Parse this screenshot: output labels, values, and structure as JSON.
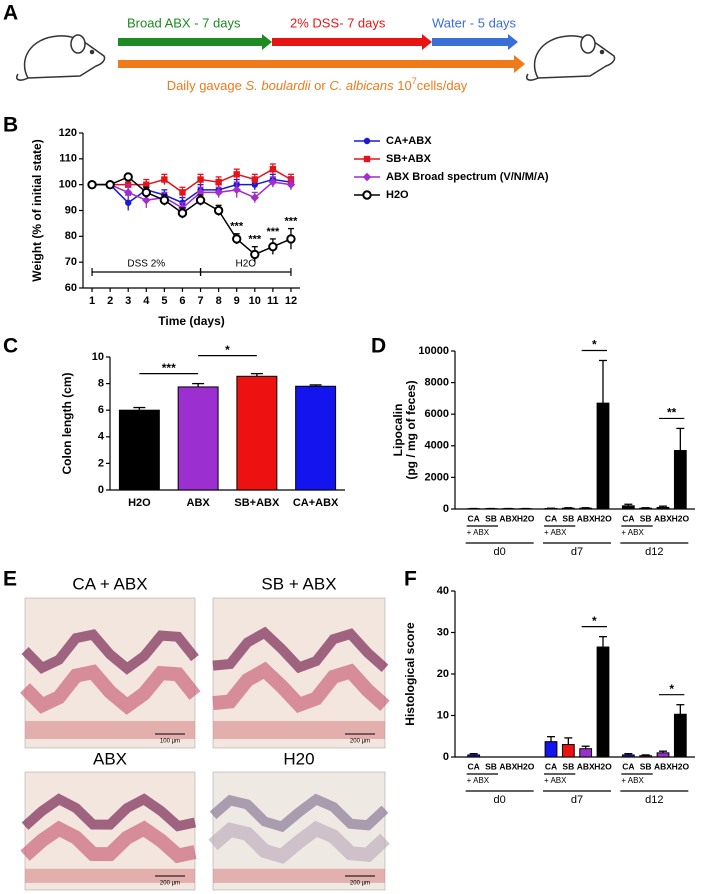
{
  "panel_labels": [
    "A",
    "B",
    "C",
    "D",
    "E",
    "F"
  ],
  "schematic": {
    "phases": [
      "Broad ABX - 7 days",
      "2% DSS- 7 days",
      "Water - 5 days"
    ],
    "gavage": [
      {
        "text": "Daily gavage "
      },
      {
        "text": "S. boulardii",
        "italic": true
      },
      {
        "text": " or "
      },
      {
        "text": "C. albicans",
        "italic": true
      },
      {
        "text": " 10"
      },
      {
        "text": "7",
        "sup": true
      },
      {
        "text": "cells/day"
      }
    ]
  },
  "histology": {
    "panels": [
      {
        "title": "CA + ABX",
        "scale": "100 µm"
      },
      {
        "title": "SB + ABX",
        "scale": "200 µm"
      },
      {
        "title": "ABX",
        "scale": "200 µm"
      },
      {
        "title": "H20",
        "scale": "200 µm"
      }
    ]
  },
  "chart_data": [
    {
      "type": "line",
      "x_label": "Time (days)",
      "y_label": "Weight (% of initial state)",
      "x": [
        1,
        2,
        3,
        4,
        5,
        6,
        7,
        8,
        9,
        10,
        11,
        12
      ],
      "xlim": [
        0.5,
        12.5
      ],
      "xticks": [
        1,
        2,
        3,
        4,
        5,
        6,
        7,
        8,
        9,
        10,
        11,
        12
      ],
      "ylim": [
        60,
        120
      ],
      "yticks": [
        60,
        70,
        80,
        90,
        100,
        110,
        120
      ],
      "series": [
        {
          "name": "CA+ABX",
          "color": "#1a1ad6",
          "marker": "circle",
          "values": [
            100,
            100,
            93,
            98,
            96,
            93,
            98,
            98,
            100,
            100,
            102,
            101
          ],
          "errors": [
            0,
            0,
            3,
            2,
            2,
            2,
            2,
            2,
            2,
            2,
            2,
            2
          ]
        },
        {
          "name": "SB+ABX",
          "color": "#e5141b",
          "marker": "square",
          "values": [
            100,
            100,
            100,
            100,
            102,
            97,
            102,
            101,
            104,
            102,
            106,
            102
          ],
          "errors": [
            0,
            0,
            2,
            2,
            2,
            2,
            2,
            2,
            2,
            2,
            2,
            2
          ]
        },
        {
          "name": "ABX Broad spectrum (V/N/M/A)",
          "color": "#a22ccc",
          "marker": "diamond",
          "values": [
            100,
            100,
            97,
            94,
            95,
            91,
            97,
            97,
            98,
            95,
            101,
            100
          ],
          "errors": [
            0,
            0,
            3,
            3,
            2,
            2,
            2,
            2,
            3,
            2,
            2,
            2
          ]
        },
        {
          "name": "H2O",
          "color": "#000000",
          "marker": "open-circle",
          "values": [
            100,
            100,
            103,
            97,
            94,
            89,
            94,
            90,
            79,
            73,
            76,
            79
          ],
          "errors": [
            0,
            0,
            1,
            2,
            2,
            2,
            2,
            2,
            2,
            3,
            3,
            4
          ]
        }
      ],
      "annotations": [
        {
          "text": "***",
          "x": 9,
          "series": 3
        },
        {
          "text": "***",
          "x": 10,
          "series": 3
        },
        {
          "text": "***",
          "x": 11,
          "series": 3
        },
        {
          "text": "***",
          "x": 12,
          "series": 3
        }
      ],
      "periods": [
        {
          "label": "DSS 2%",
          "start": 1,
          "end": 7
        },
        {
          "label": "H2O",
          "start": 7,
          "end": 12
        }
      ]
    },
    {
      "type": "bar",
      "y_label": "Colon length (cm)",
      "categories": [
        "H2O",
        "ABX",
        "SB+ABX",
        "CA+ABX"
      ],
      "values": [
        6.0,
        7.75,
        8.55,
        7.8
      ],
      "errors": [
        0.2,
        0.25,
        0.2,
        0.1
      ],
      "colors": [
        "#000000",
        "#9b2fd0",
        "#ee1111",
        "#1414ee"
      ],
      "ylim": [
        0,
        10
      ],
      "yticks": [
        0,
        2,
        4,
        6,
        8,
        10
      ],
      "significance": [
        {
          "text": "***",
          "categories": [
            0,
            1
          ]
        },
        {
          "text": "*",
          "categories": [
            1,
            2
          ]
        }
      ]
    },
    {
      "type": "grouped_bar",
      "y_label": [
        "Lipocalin",
        "(pg / mg of feces)"
      ],
      "ylim": [
        0,
        10000
      ],
      "yticks": [
        0,
        2000,
        4000,
        6000,
        8000,
        10000
      ],
      "colors": [
        "#000000",
        "#000000",
        "#000000",
        "#000000"
      ],
      "groups": [
        {
          "name": "d0",
          "sublabel": "+ ABX",
          "categories": [
            "CA",
            "SB",
            "ABX",
            "H2O"
          ],
          "values": [
            20,
            20,
            20,
            20
          ],
          "errors": [
            10,
            10,
            10,
            10
          ],
          "significance": []
        },
        {
          "name": "d7",
          "sublabel": "+ ABX",
          "categories": [
            "CA",
            "SB",
            "ABX",
            "H2O"
          ],
          "values": [
            30,
            50,
            50,
            6700
          ],
          "errors": [
            20,
            30,
            30,
            2700
          ],
          "significance": [
            {
              "text": "*",
              "categories": [
                2,
                3
              ]
            }
          ]
        },
        {
          "name": "d12",
          "sublabel": "+ ABX",
          "categories": [
            "CA",
            "SB",
            "ABX",
            "H2O"
          ],
          "values": [
            200,
            50,
            100,
            3700
          ],
          "errors": [
            100,
            30,
            80,
            1400
          ],
          "significance": [
            {
              "text": "**",
              "categories": [
                2,
                3
              ]
            }
          ]
        }
      ]
    },
    {
      "type": "grouped_bar",
      "y_label": [
        "Histological score"
      ],
      "ylim": [
        0,
        40
      ],
      "yticks": [
        0,
        10,
        20,
        30,
        40
      ],
      "colors": [
        "#1414ee",
        "#ee1111",
        "#9b2fd0",
        "#000000"
      ],
      "groups": [
        {
          "name": "d0",
          "sublabel": "+ ABX",
          "categories": [
            "CA",
            "SB",
            "ABX",
            "H2O"
          ],
          "values": [
            0.5,
            0,
            0,
            0
          ],
          "errors": [
            0.3,
            0,
            0,
            0
          ],
          "significance": []
        },
        {
          "name": "d7",
          "sublabel": "+ ABX",
          "categories": [
            "CA",
            "SB",
            "ABX",
            "H2O"
          ],
          "values": [
            3.7,
            3.0,
            2.0,
            26.5
          ],
          "errors": [
            1.2,
            1.6,
            0.6,
            2.5
          ],
          "significance": [
            {
              "text": "*",
              "categories": [
                2,
                3
              ]
            }
          ]
        },
        {
          "name": "d12",
          "sublabel": "+ ABX",
          "categories": [
            "CA",
            "SB",
            "ABX",
            "H2O"
          ],
          "values": [
            0.5,
            0.3,
            1.0,
            10.3
          ],
          "errors": [
            0.3,
            0.2,
            0.4,
            2.3
          ],
          "significance": [
            {
              "text": "*",
              "categories": [
                2,
                3
              ]
            }
          ]
        }
      ]
    }
  ]
}
